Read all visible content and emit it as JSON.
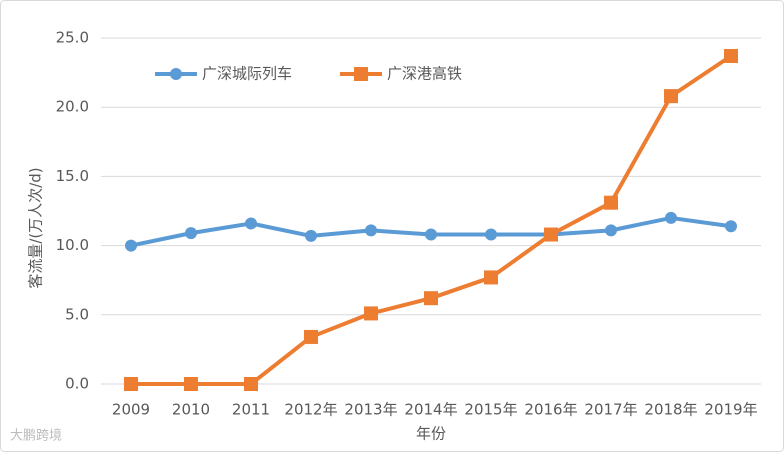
{
  "chart_data": {
    "type": "line",
    "y_label": "客流量/(万人次/d)",
    "x_label": "年份",
    "categories": [
      "2009",
      "2010",
      "2011",
      "2012年",
      "2013年",
      "2014年",
      "2015年",
      "2016年",
      "2017年",
      "2018年",
      "2019年"
    ],
    "series": [
      {
        "name": "广深城际列车",
        "color": "#5b9bd5",
        "marker": "circle",
        "values": [
          10.0,
          10.9,
          11.6,
          10.7,
          11.1,
          10.8,
          10.8,
          10.8,
          11.1,
          12.0,
          11.4
        ]
      },
      {
        "name": "广深港高铁",
        "color": "#ed7d31",
        "marker": "square",
        "values": [
          0,
          0,
          0,
          3.4,
          5.1,
          6.2,
          7.7,
          10.8,
          13.1,
          20.8,
          23.7
        ]
      }
    ],
    "ylim": [
      0,
      25
    ],
    "yticks": [
      {
        "value": 0,
        "label": "0.0"
      },
      {
        "value": 5,
        "label": "5.0"
      },
      {
        "value": 10,
        "label": "10.0"
      },
      {
        "value": 15,
        "label": "15.0"
      },
      {
        "value": 20,
        "label": "20.0"
      },
      {
        "value": 25,
        "label": "25.0"
      }
    ],
    "grid": true,
    "legend": "top",
    "watermark": "大鹏跨境"
  }
}
